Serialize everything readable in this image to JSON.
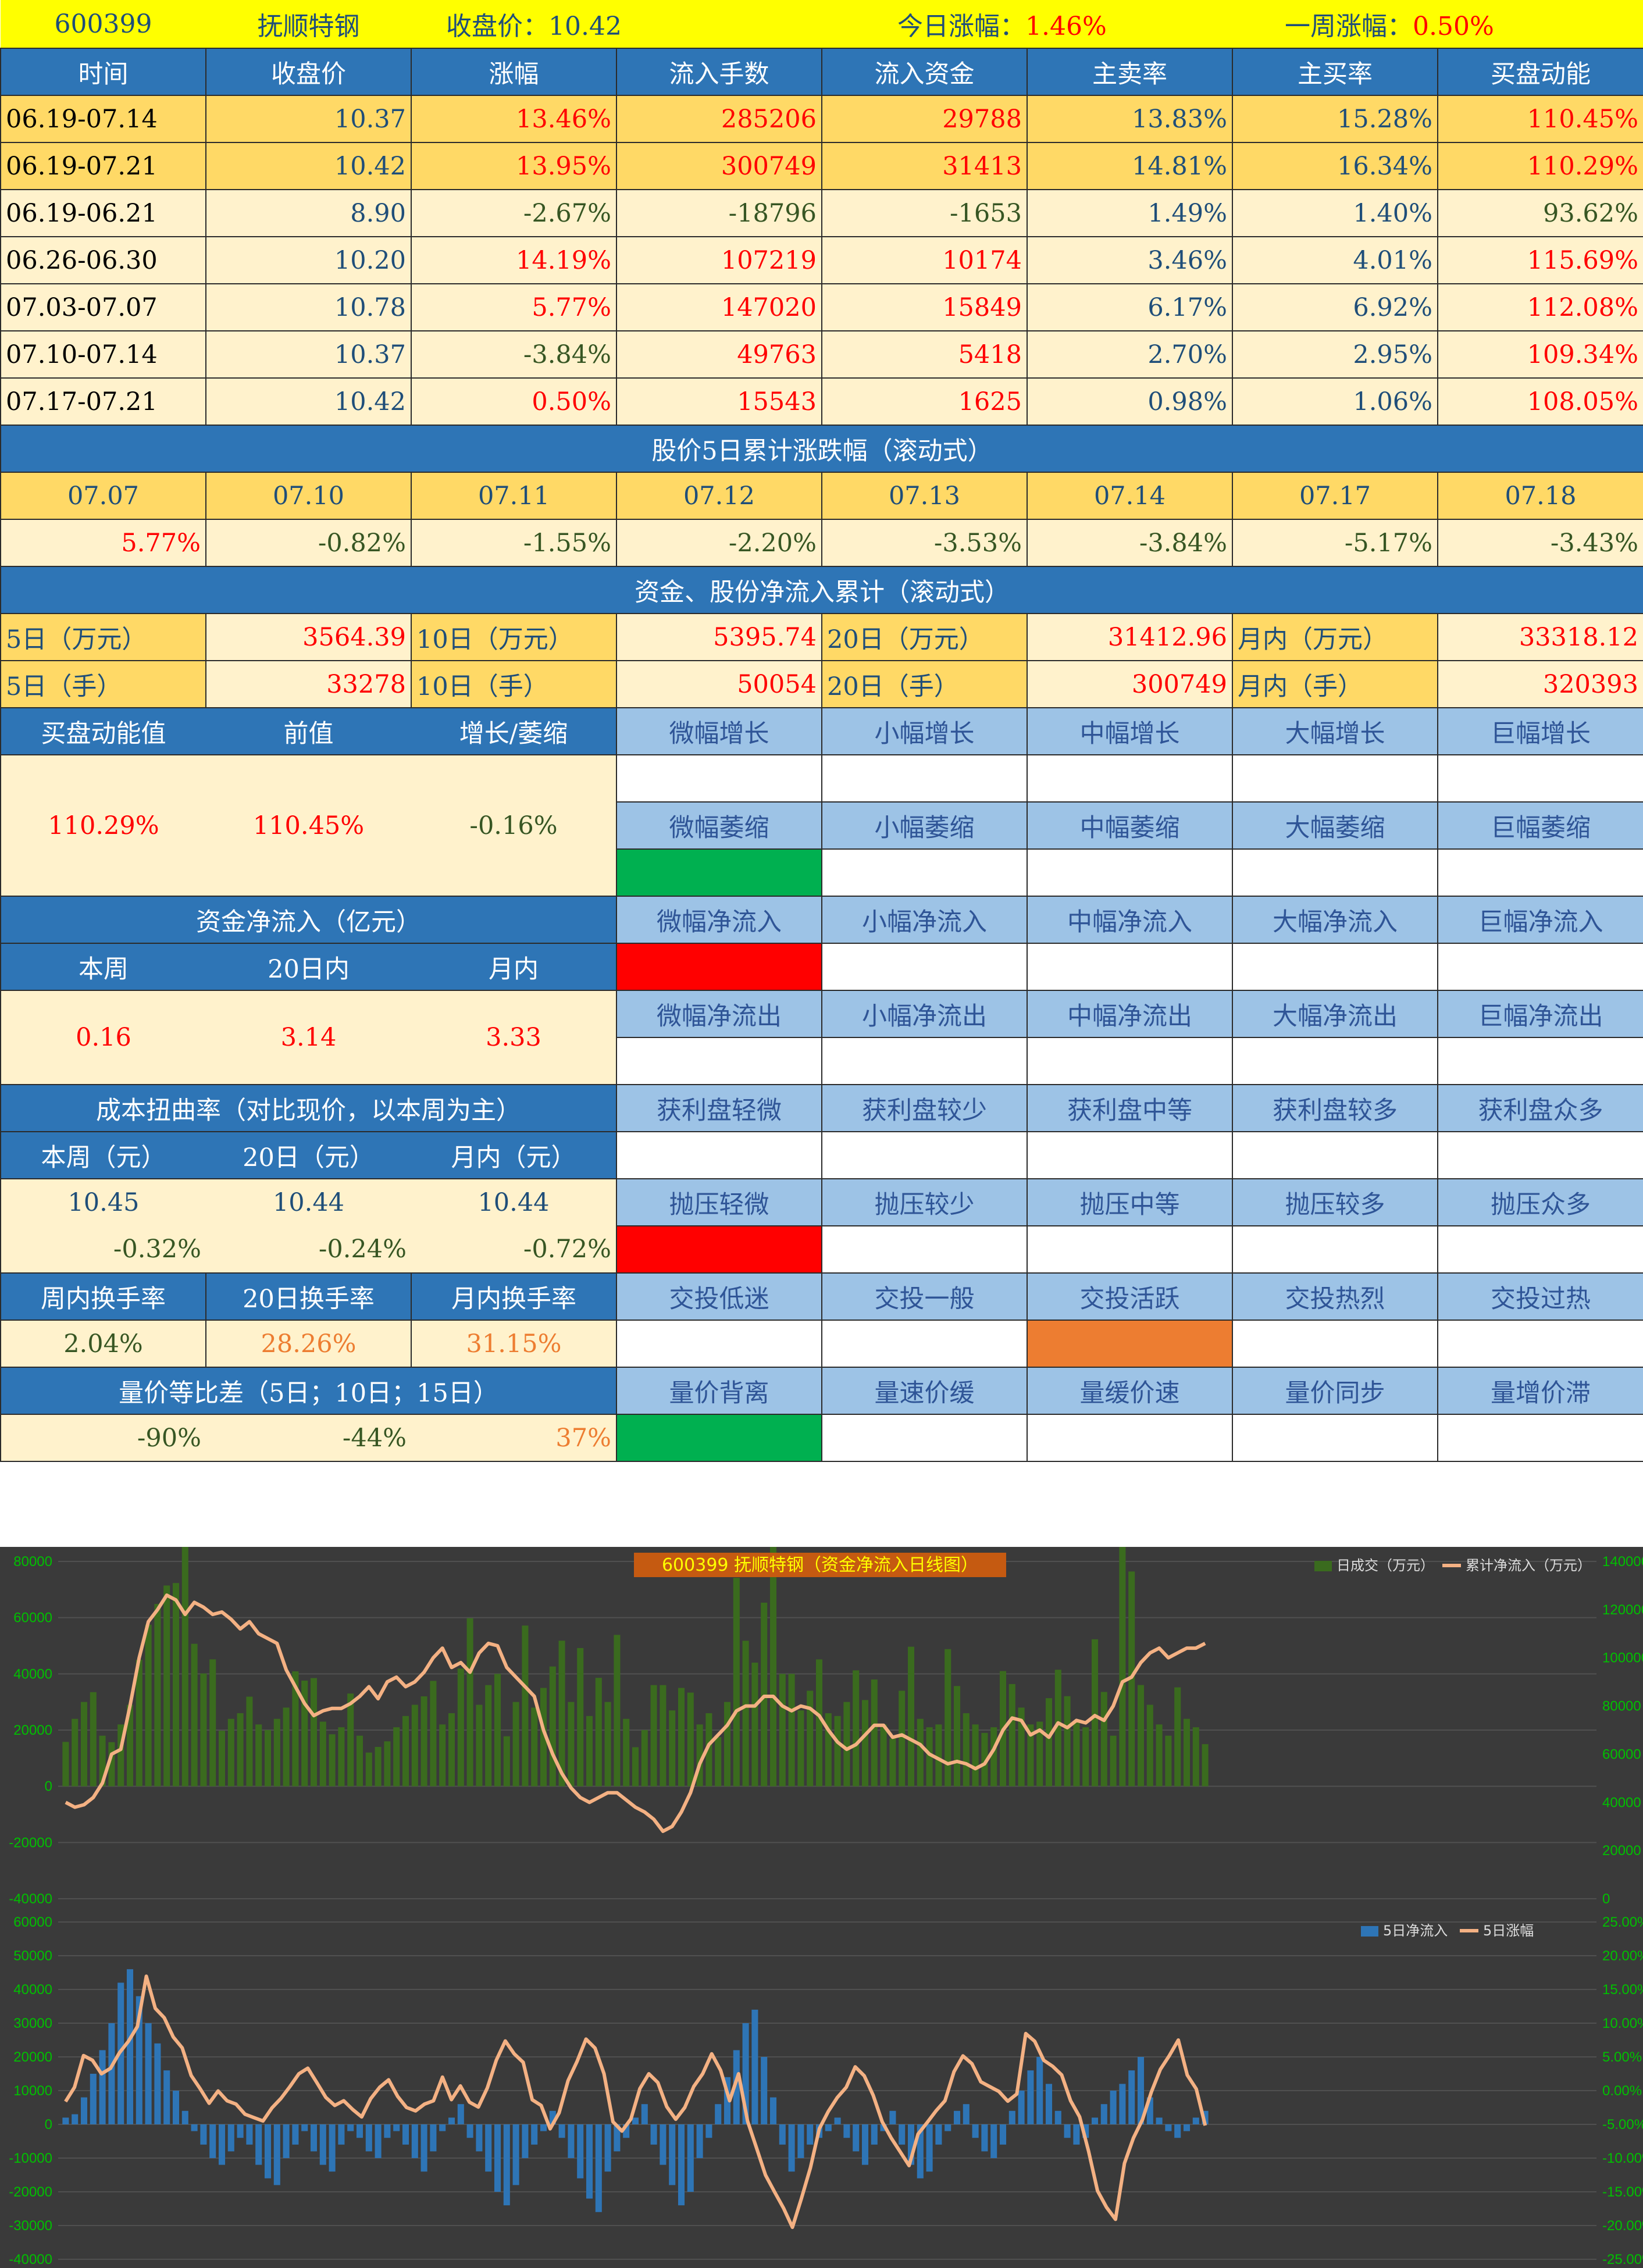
{
  "header": {
    "code": "600399",
    "name": "抚顺特钢",
    "close_label": "收盘价：",
    "close_value": "10.42",
    "today_label": "今日涨幅：",
    "today_value": "1.46%",
    "week_label": "一周涨幅：",
    "week_value": "0.50%"
  },
  "main_table": {
    "columns": [
      "时间",
      "收盘价",
      "涨幅",
      "流入手数",
      "流入资金",
      "主卖率",
      "主买率",
      "买盘动能"
    ],
    "rows": [
      [
        "06.19-07.14",
        "10.37",
        "13.46%",
        "285206",
        "29788",
        "13.83%",
        "15.28%",
        "110.45%"
      ],
      [
        "06.19-07.21",
        "10.42",
        "13.95%",
        "300749",
        "31413",
        "14.81%",
        "16.34%",
        "110.29%"
      ],
      [
        "06.19-06.21",
        "8.90",
        "-2.67%",
        "-18796",
        "-1653",
        "1.49%",
        "1.40%",
        "93.62%"
      ],
      [
        "06.26-06.30",
        "10.20",
        "14.19%",
        "107219",
        "10174",
        "3.46%",
        "4.01%",
        "115.69%"
      ],
      [
        "07.03-07.07",
        "10.78",
        "5.77%",
        "147020",
        "15849",
        "6.17%",
        "6.92%",
        "112.08%"
      ],
      [
        "07.10-07.14",
        "10.37",
        "-3.84%",
        "49763",
        "5418",
        "2.70%",
        "2.95%",
        "109.34%"
      ],
      [
        "07.17-07.21",
        "10.42",
        "0.50%",
        "15543",
        "1625",
        "0.98%",
        "1.06%",
        "108.05%"
      ]
    ]
  },
  "rolling5": {
    "title": "股价5日累计涨跌幅（滚动式）",
    "dates": [
      "07.07",
      "07.10",
      "07.11",
      "07.12",
      "07.13",
      "07.14",
      "07.17",
      "07.18"
    ],
    "values": [
      "5.77%",
      "-0.82%",
      "-1.55%",
      "-2.20%",
      "-3.53%",
      "-3.84%",
      "-5.17%",
      "-3.43%"
    ]
  },
  "netflow": {
    "title": "资金、股份净流入累计（滚动式）",
    "row1": [
      "5日（万元）",
      "3564.39",
      "10日（万元）",
      "5395.74",
      "20日（万元）",
      "31412.96",
      "月内（万元）",
      "33318.12"
    ],
    "row2": [
      "5日（手）",
      "33278",
      "10日（手）",
      "50054",
      "20日（手）",
      "300749",
      "月内（手）",
      "320393"
    ]
  },
  "momentum": {
    "headers": [
      "买盘动能值",
      "前值",
      "增长/萎缩"
    ],
    "values": [
      "110.29%",
      "110.45%",
      "-0.16%"
    ],
    "grow_labels": [
      "微幅增长",
      "小幅增长",
      "中幅增长",
      "大幅增长",
      "巨幅增长"
    ],
    "shrink_labels": [
      "微幅萎缩",
      "小幅萎缩",
      "中幅萎缩",
      "大幅萎缩",
      "巨幅萎缩"
    ]
  },
  "capital": {
    "title": "资金净流入（亿元）",
    "headers": [
      "本周",
      "20日内",
      "月内"
    ],
    "values": [
      "0.16",
      "3.14",
      "3.33"
    ],
    "in_labels": [
      "微幅净流入",
      "小幅净流入",
      "中幅净流入",
      "大幅净流入",
      "巨幅净流入"
    ],
    "out_labels": [
      "微幅净流出",
      "小幅净流出",
      "中幅净流出",
      "大幅净流出",
      "巨幅净流出"
    ]
  },
  "cost": {
    "title": "成本扭曲率（对比现价，以本周为主）",
    "headers": [
      "本周（元）",
      "20日（元）",
      "月内（元）"
    ],
    "values": [
      "10.45",
      "10.44",
      "10.44"
    ],
    "rates": [
      "-0.32%",
      "-0.24%",
      "-0.72%"
    ],
    "profit_labels": [
      "获利盘轻微",
      "获利盘较少",
      "获利盘中等",
      "获利盘较多",
      "获利盘众多"
    ],
    "pressure_labels": [
      "抛压轻微",
      "抛压较少",
      "抛压中等",
      "抛压较多",
      "抛压众多"
    ]
  },
  "turnover": {
    "headers": [
      "周内换手率",
      "20日换手率",
      "月内换手率"
    ],
    "values": [
      "2.04%",
      "28.26%",
      "31.15%"
    ],
    "labels": [
      "交投低迷",
      "交投一般",
      "交投活跃",
      "交投热烈",
      "交投过热"
    ]
  },
  "volprice": {
    "title": "量价等比差（5日；10日；15日）",
    "values": [
      "-90%",
      "-44%",
      "37%"
    ],
    "labels": [
      "量价背离",
      "量速价缓",
      "量缓价速",
      "量价同步",
      "量增价滞"
    ]
  },
  "colors": {
    "header_blue": "#2e75b6",
    "label_blue": "#9dc3e6",
    "gold": "#ffd966",
    "cream": "#fff2cc",
    "signal_green": "#00b050",
    "signal_red": "#ff0000",
    "signal_orange": "#ed7d31"
  },
  "chart_data": [
    {
      "type": "bar",
      "title": "600399 抚顺特钢（资金净流入日线图）",
      "legend": [
        "日成交（万元）",
        "累计净流入（万元）"
      ],
      "legend_position": "top-right",
      "y_left_ticks": [
        "80000",
        "60000",
        "40000",
        "20000",
        "0",
        "-20000",
        "-40000"
      ],
      "y_right_ticks": [
        "140000",
        "120000",
        "100000",
        "80000",
        "60000",
        "40000",
        "20000",
        "0"
      ],
      "ylim_left": [
        -40000,
        80000
      ],
      "ylim_right": [
        0,
        140000
      ],
      "grid": true,
      "series": [
        {
          "name": "日成交（万元）",
          "values": [
            15800,
            24000,
            30000,
            33500,
            18000,
            15700,
            22000,
            29000,
            45000,
            57500,
            64877,
            71434,
            72317,
            86585,
            50700,
            40143,
            45163,
            19752,
            24000,
            26000,
            31883,
            22000,
            20000,
            24000,
            28000,
            40896,
            37600,
            38500,
            23000,
            18500,
            21000,
            33000,
            18000,
            12000,
            14000,
            16000,
            21000,
            25000,
            29000,
            32000,
            37500,
            22000,
            26000,
            41883,
            59796,
            29000,
            36000,
            40000,
            17794,
            30000,
            57181,
            28000,
            35000,
            42617,
            51804,
            30000,
            49184,
            25000,
            38594,
            30000,
            53869,
            24000,
            13905,
            20000,
            36000,
            36000,
            27000,
            35000,
            33333,
            22000,
            26000,
            17500,
            30000,
            74178,
            51780,
            44000,
            65332,
            87481,
            40000,
            40000,
            27000,
            34000,
            45151,
            26000,
            25000,
            30000,
            41240,
            30695,
            38000,
            22000,
            17000,
            34000,
            49654,
            24000,
            21000,
            22000,
            48799,
            35667,
            26000,
            22000,
            19000,
            21000,
            40994,
            36370,
            28000,
            22000,
            23000,
            31353,
            41468,
            32049,
            23000,
            21000,
            52293,
            33560,
            18000,
            116079,
            76417,
            36029,
            29000,
            22000,
            18000,
            35201,
            24008,
            21000,
            15000
          ],
          "values_note": "Estimated daily bar heights, read approximately from the chart."
        },
        {
          "name": "累计净流入（万元）",
          "values": [
            40000,
            38000,
            39000,
            42000,
            48000,
            60000,
            62000,
            80000,
            100000,
            115000,
            120000,
            126000,
            124000,
            118000,
            123000,
            121000,
            118000,
            119000,
            116000,
            112000,
            115000,
            110000,
            108000,
            106000,
            95000,
            88000,
            81000,
            76000,
            78000,
            79000,
            79000,
            81000,
            84000,
            88000,
            83000,
            90000,
            92000,
            88000,
            90000,
            94000,
            100000,
            104000,
            96000,
            98000,
            94000,
            102000,
            106000,
            105000,
            96000,
            92000,
            88000,
            84000,
            70000,
            60000,
            52000,
            46000,
            42000,
            40000,
            42000,
            44000,
            44000,
            41000,
            38000,
            36000,
            33000,
            28000,
            30000,
            36000,
            44000,
            56000,
            64000,
            68000,
            72000,
            78000,
            80000,
            80000,
            84000,
            84000,
            80000,
            78000,
            80000,
            79000,
            76000,
            70000,
            65000,
            62000,
            64000,
            68000,
            72000,
            72000,
            67000,
            68000,
            66000,
            64000,
            60000,
            58000,
            56000,
            57000,
            56000,
            54000,
            56000,
            62000,
            70000,
            75000,
            74000,
            68000,
            70000,
            67000,
            73000,
            71000,
            74000,
            73000,
            76000,
            74000,
            80000,
            90000,
            92000,
            98000,
            102000,
            104000,
            100000,
            102000,
            104000,
            104000,
            106000
          ]
        }
      ]
    },
    {
      "type": "bar",
      "legend": [
        "5日净流入",
        "5日涨幅"
      ],
      "legend_position": "top-right",
      "y_left_ticks": [
        "60000",
        "50000",
        "40000",
        "30000",
        "20000",
        "10000",
        "0",
        "-10000",
        "-20000",
        "-30000",
        "-40000"
      ],
      "y_right_ticks": [
        "25.00%",
        "20.00%",
        "15.00%",
        "10.00%",
        "5.00%",
        "0.00%",
        "-5.00%",
        "-10.00%",
        "-15.00%",
        "-20.00%",
        "-25.00%"
      ],
      "ylim_left": [
        -40000,
        60000
      ],
      "ylim_right": [
        -25,
        25
      ],
      "grid": true,
      "series": [
        {
          "name": "5日净流入",
          "values": [
            2000,
            3000,
            8000,
            15000,
            22000,
            30000,
            42000,
            46000,
            38000,
            30000,
            24000,
            16000,
            10000,
            4000,
            -2000,
            -6000,
            -10000,
            -12000,
            -8000,
            -4000,
            -6000,
            -12000,
            -16000,
            -18000,
            -10000,
            -6000,
            -2000,
            -8000,
            -12000,
            -14000,
            -6000,
            -2000,
            -4000,
            -8000,
            -10000,
            -4000,
            -2000,
            -6000,
            -10000,
            -14000,
            -8000,
            -2000,
            2000,
            6000,
            -4000,
            -8000,
            -14000,
            -20000,
            -24000,
            -18000,
            -10000,
            -6000,
            -2000,
            4000,
            -4000,
            -10000,
            -16000,
            -22000,
            -26000,
            -14000,
            -8000,
            -4000,
            2000,
            6000,
            -6000,
            -12000,
            -18000,
            -24000,
            -20000,
            -10000,
            -4000,
            6000,
            14000,
            22000,
            30000,
            34000,
            20000,
            8000,
            -6000,
            -14000,
            -10000,
            -6000,
            -4000,
            -2000,
            2000,
            -4000,
            -8000,
            -12000,
            -6000,
            -2000,
            4000,
            -6000,
            -12000,
            -16000,
            -14000,
            -6000,
            -2000,
            4000,
            6000,
            -4000,
            -8000,
            -10000,
            -6000,
            4000,
            10000,
            16000,
            20000,
            12000,
            4000,
            -4000,
            -6000,
            -4000,
            2000,
            6000,
            10000,
            12000,
            16000,
            20000,
            8000,
            2000,
            -2000,
            -4000,
            -2000,
            2000,
            4000
          ],
          "values_note": "Estimated 5-day net inflow bars, read approximately from the chart."
        },
        {
          "name": "5日涨幅",
          "values": [
            -1.62,
            0.5,
            5.2,
            4.5,
            2.5,
            3.3,
            5.6,
            7.3,
            9.5,
            16.96,
            12.2,
            10.8,
            7.95,
            6.34,
            2.25,
            0.28,
            -1.87,
            -0.05,
            -1.5,
            -2.0,
            -3.5,
            -4.0,
            -4.5,
            -2.56,
            -1.16,
            0.6,
            2.5,
            3.33,
            1.2,
            -1.0,
            -2.2,
            -1.5,
            -2.8,
            -3.9,
            -1.2,
            0.5,
            1.6,
            -0.84,
            -2.5,
            -3.0,
            -2.0,
            -1.5,
            2.0,
            -1.34,
            0.7,
            -1.7,
            -2.43,
            0.4,
            4.5,
            7.36,
            5.45,
            4.2,
            -1.35,
            -2.2,
            -5.66,
            -3.3,
            1.5,
            4.33,
            7.64,
            6.3,
            2.53,
            -4.6,
            -6.0,
            -4.2,
            0.3,
            2.5,
            1.2,
            -2.4,
            -4.24,
            -2.5,
            0.6,
            2.5,
            5.46,
            3.0,
            -1.5,
            2.5,
            -4.53,
            -8.5,
            -12.52,
            -15.0,
            -17.4,
            -20.26,
            -16.0,
            -11.46,
            -5.64,
            -3.08,
            -1.02,
            0.5,
            3.53,
            2.2,
            -0.7,
            -4.6,
            -7.0,
            -9.05,
            -11.11,
            -6.44,
            -4.75,
            -3.0,
            -1.5,
            2.8,
            5.15,
            4.0,
            1.3,
            0.59,
            -0.11,
            -1.56,
            -0.5,
            8.46,
            7.32,
            4.5,
            3.6,
            2.34,
            -1.5,
            -3.88,
            -8.97,
            -14.85,
            -17.3,
            -19.08,
            -10.78,
            -7.03,
            -4.3,
            -0.2,
            3.15,
            5.2,
            7.5,
            2.3,
            0.25,
            -5.17
          ],
          "values_note": "Estimated 5-day change (%), read approximately from the chart."
        }
      ]
    }
  ]
}
